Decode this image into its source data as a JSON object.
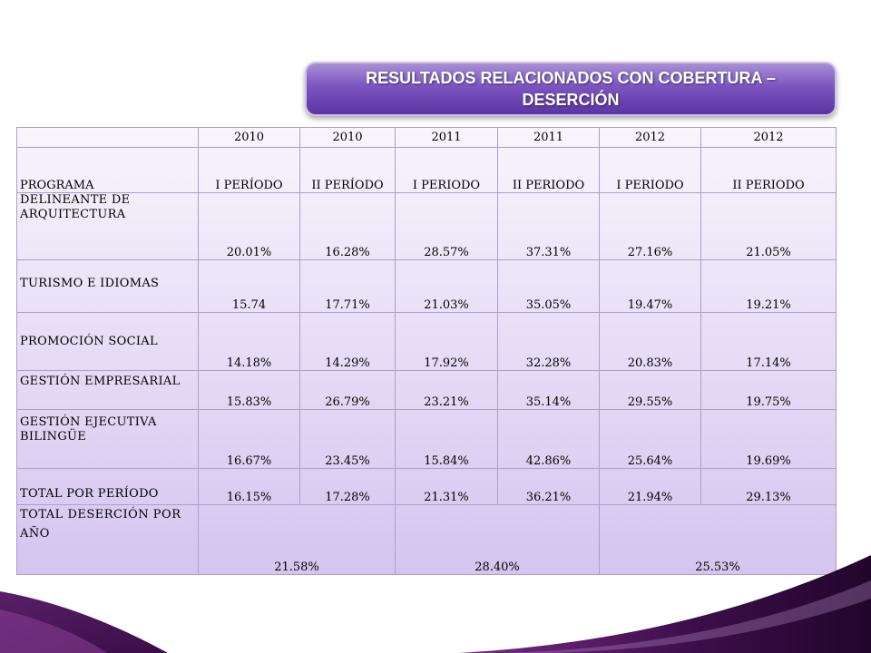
{
  "title": "RESULTADOS  RELACIONADOS CON COBERTURA – DESERCIÓN",
  "table": {
    "years": [
      "2010",
      "2010",
      "2011",
      "2011",
      "2012",
      "2012"
    ],
    "header": [
      "PROGRAMA",
      "I PERÍODO",
      "II PERÍODO",
      "I PERIODO",
      "II PERIODO",
      "I PERIODO",
      "II PERIODO"
    ],
    "rows": [
      {
        "name": "DELINEANTE  DE ARQUITECTURA",
        "values": [
          "20.01%",
          "16.28%",
          "28.57%",
          "37.31%",
          "27.16%",
          "21.05%"
        ]
      },
      {
        "name": "TURISMO E IDIOMAS",
        "values": [
          "15.74",
          "17.71%",
          "21.03%",
          "35.05%",
          "19.47%",
          "19.21%"
        ]
      },
      {
        "name": "PROMOCIÓN SOCIAL",
        "values": [
          "14.18%",
          "14.29%",
          "17.92%",
          "32.28%",
          "20.83%",
          "17.14%"
        ]
      },
      {
        "name": "GESTIÓN EMPRESARIAL",
        "values": [
          "15.83%",
          "26.79%",
          "23.21%",
          "35.14%",
          "29.55%",
          "19.75%"
        ]
      },
      {
        "name": "GESTIÓN EJECUTIVA BILINGÜE",
        "values": [
          "16.67%",
          "23.45%",
          "15.84%",
          "42.86%",
          "25.64%",
          "19.69%"
        ]
      },
      {
        "name": "TOTAL POR PERÍODO",
        "values": [
          "16.15%",
          "17.28%",
          "21.31%",
          "36.21%",
          "21.94%",
          "29.13%"
        ]
      }
    ],
    "total_year": {
      "name": "TOTAL DESERCIÓN POR AÑO",
      "values": [
        "21.58%",
        "28.40%",
        "25.53%"
      ]
    }
  }
}
